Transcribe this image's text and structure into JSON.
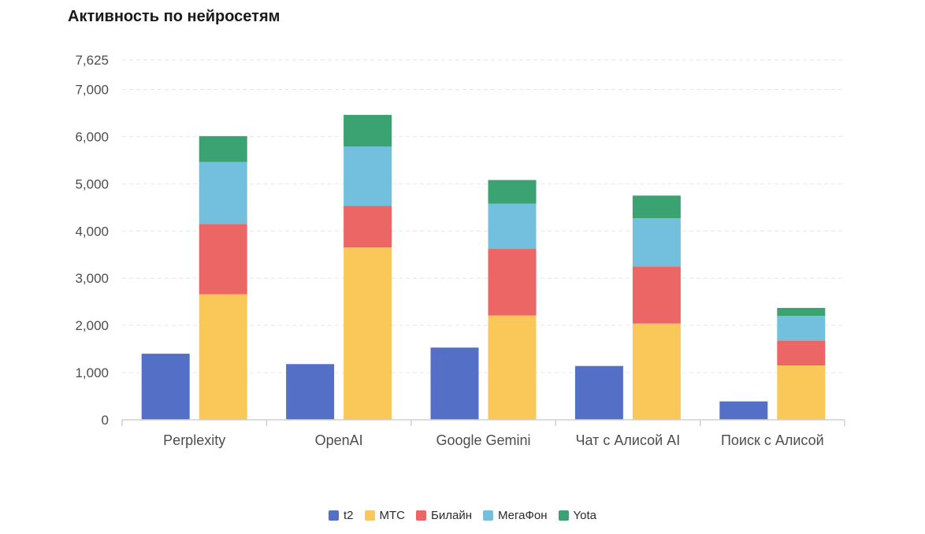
{
  "chart_data": {
    "type": "bar",
    "title": "Активность по нейросетям",
    "xlabel": "",
    "ylabel": "",
    "ylim": [
      0,
      7625
    ],
    "yticks": [
      0,
      1000,
      2000,
      3000,
      4000,
      5000,
      6000,
      7000,
      7625
    ],
    "ytick_labels": [
      "0",
      "1,000",
      "2,000",
      "3,000",
      "4,000",
      "5,000",
      "6,000",
      "7,000",
      "7,625"
    ],
    "grid": true,
    "legend_position": "bottom",
    "categories": [
      "Perplexity",
      "OpenAI",
      "Google Gemini",
      "Чат с Алисой AI",
      "Поиск с Алисой"
    ],
    "series": [
      {
        "name": "t2",
        "color": "#5470c6",
        "stack": "t2",
        "values": [
          1400,
          1180,
          1530,
          1140,
          390
        ]
      },
      {
        "name": "МТС",
        "color": "#f9c859",
        "stack": "others",
        "values": [
          2660,
          3650,
          2210,
          2040,
          1150
        ]
      },
      {
        "name": "Билайн",
        "color": "#ec6666",
        "stack": "others",
        "values": [
          1490,
          880,
          1410,
          1210,
          530
        ]
      },
      {
        "name": "МегаФон",
        "color": "#73c0de",
        "stack": "others",
        "values": [
          1310,
          1260,
          960,
          1020,
          520
        ]
      },
      {
        "name": "Yota",
        "color": "#3ba272",
        "stack": "others",
        "values": [
          550,
          670,
          500,
          480,
          170
        ]
      }
    ]
  }
}
